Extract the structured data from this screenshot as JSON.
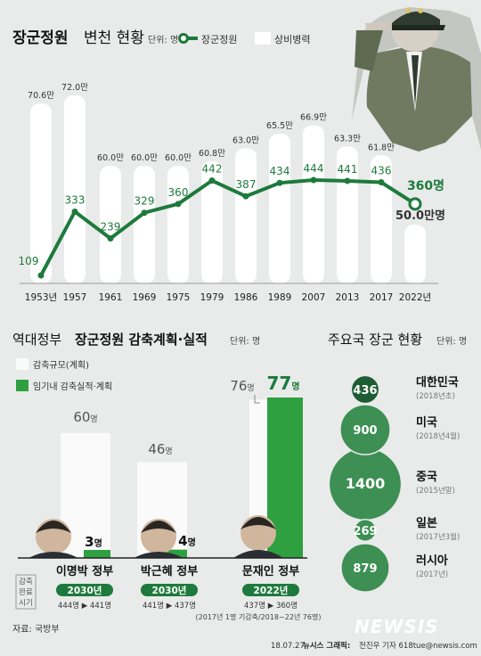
{
  "header": {
    "title": "장군정원",
    "title_rest": "변천 현황",
    "unit": "단위: 명",
    "legend_line": "장군정원",
    "legend_bar": "상비병력"
  },
  "chart_data": [
    {
      "type": "bar+line",
      "title": "장군정원 변천 현황",
      "unit": "명",
      "categories": [
        "1953년",
        "1957",
        "1961",
        "1969",
        "1975",
        "1979",
        "1986",
        "1989",
        "2007",
        "2013",
        "2017",
        "2022년"
      ],
      "series": [
        {
          "name": "상비병력",
          "kind": "bar",
          "values": [
            70.6,
            72.0,
            60.0,
            60.0,
            60.0,
            60.8,
            63.0,
            65.5,
            66.9,
            63.3,
            61.8,
            50.0
          ],
          "labels": [
            "70.6만",
            "72.0만",
            "60.0만",
            "60.0만",
            "60.0만",
            "60.8만",
            "63.0만",
            "65.5만",
            "66.9만",
            "63.3만",
            "61.8만",
            "50.0만명"
          ]
        },
        {
          "name": "장군정원",
          "kind": "line",
          "values": [
            109,
            333,
            239,
            329,
            360,
            442,
            387,
            434,
            444,
            441,
            436,
            360
          ],
          "labels": [
            "109",
            "333",
            "239",
            "329",
            "360",
            "442",
            "387",
            "434",
            "444",
            "441",
            "436",
            "360명"
          ]
        }
      ],
      "colors": {
        "line": "#1d7a3c",
        "bar": "#ffffff"
      }
    },
    {
      "type": "bar",
      "title": "역대정부 장군정원 감축계획·실적",
      "unit": "단위: 명",
      "categories": [
        "이명박 정부",
        "박근혜 정부",
        "문재인 정부"
      ],
      "series": [
        {
          "name": "감축규모(계획)",
          "values": [
            60,
            46,
            76
          ],
          "labels": [
            "60명",
            "46명",
            "76명"
          ]
        },
        {
          "name": "임기내 감축실적·계획",
          "values": [
            3,
            4,
            77
          ],
          "labels": [
            "3명",
            "4명",
            "77명"
          ]
        }
      ]
    },
    {
      "type": "bubble",
      "title": "주요국 장군 현황",
      "unit": "단위: 명",
      "items": [
        {
          "country": "대한민국",
          "date": "(2018년초)",
          "value": 436
        },
        {
          "country": "미국",
          "date": "(2018년4월)",
          "value": 900
        },
        {
          "country": "중국",
          "date": "(2015년말)",
          "value": 1400
        },
        {
          "country": "일본",
          "date": "(2017년3월)",
          "value": 269
        },
        {
          "country": "러시아",
          "date": "(2017년)",
          "value": 879
        }
      ]
    }
  ],
  "section2": {
    "title_a": "역대정부",
    "title_b": "장군정원 감축계획·실적",
    "unit": "단위: 명",
    "legend_plan": "감축규모(계획)",
    "legend_actual": "임기내 감축실적·계획",
    "side_label": [
      "감축",
      "완료",
      "시기"
    ],
    "govts": [
      {
        "name": "이명박 정부",
        "year": "2030년",
        "change": "444명 ▶ 441명"
      },
      {
        "name": "박근혜 정부",
        "year": "2030년",
        "change": "441명 ▶ 437명"
      },
      {
        "name": "문재인 정부",
        "year": "2022년",
        "change": "437명 ▶ 360명"
      }
    ],
    "footnote": "(2017년 1명 기감축/2018~22년 76명)"
  },
  "section3": {
    "title": "주요국 장군 현황",
    "unit": "단위: 명"
  },
  "footer": {
    "source": "자료: 국방부",
    "credit": "18.07.27",
    "credit_bold": "뉴시스 그래픽:",
    "credit_rest": "전진우 기자 618tue@newsis.com",
    "logo": "NEWSIS"
  },
  "colors": {
    "green": "#1d7a3c",
    "bg": "#e9eaea",
    "bright_green": "#2ea040"
  }
}
